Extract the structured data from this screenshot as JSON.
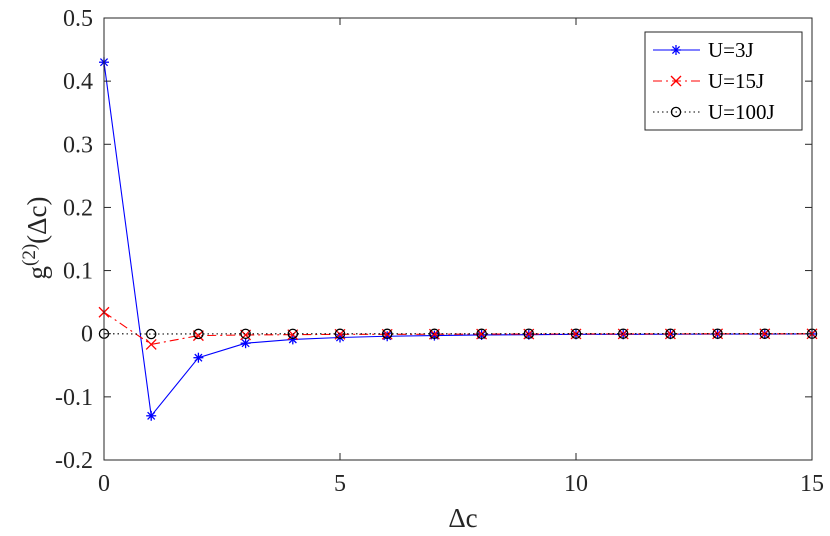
{
  "chart_data": {
    "type": "line",
    "title": "",
    "xlabel": "Δc",
    "ylabel_base": "g",
    "ylabel_sup": "(2)",
    "ylabel_arg": "(Δc)",
    "xlim": [
      0,
      15
    ],
    "ylim": [
      -0.2,
      0.5
    ],
    "xticks": [
      0,
      5,
      10,
      15
    ],
    "yticks": [
      -0.2,
      -0.1,
      0,
      0.1,
      0.2,
      0.3,
      0.4,
      0.5
    ],
    "ytick_labels": [
      "-0.2",
      "-0.1",
      "0",
      "0.1",
      "0.2",
      "0.3",
      "0.4",
      "0.5"
    ],
    "grid": false,
    "legend_position": "top-right",
    "x": [
      0,
      1,
      2,
      3,
      4,
      5,
      6,
      7,
      8,
      9,
      10,
      11,
      12,
      13,
      14,
      15
    ],
    "series": [
      {
        "name": "U=3J",
        "color": "#0000ff",
        "line_style": "solid",
        "marker": "asterisk",
        "values": [
          0.43,
          -0.13,
          -0.038,
          -0.015,
          -0.009,
          -0.006,
          -0.004,
          -0.003,
          -0.002,
          -0.0015,
          -0.001,
          -0.001,
          -0.0008,
          -0.0006,
          -0.0005,
          -0.0004
        ]
      },
      {
        "name": "U=15J",
        "color": "#ff0000",
        "line_style": "dashdot",
        "marker": "x",
        "values": [
          0.034,
          -0.017,
          -0.003,
          -0.002,
          -0.0015,
          -0.001,
          -0.001,
          -0.0008,
          -0.0006,
          -0.0005,
          -0.0004,
          -0.0003,
          -0.0003,
          -0.0002,
          -0.0002,
          -0.0002
        ]
      },
      {
        "name": "U=100J",
        "color": "#000000",
        "line_style": "dotted",
        "marker": "circle",
        "values": [
          0,
          -0.0005,
          -0.0003,
          -0.0002,
          -0.0002,
          -0.0001,
          -0.0001,
          -0.0001,
          -0.0001,
          0,
          0,
          0,
          0,
          0,
          0,
          0
        ]
      }
    ]
  }
}
